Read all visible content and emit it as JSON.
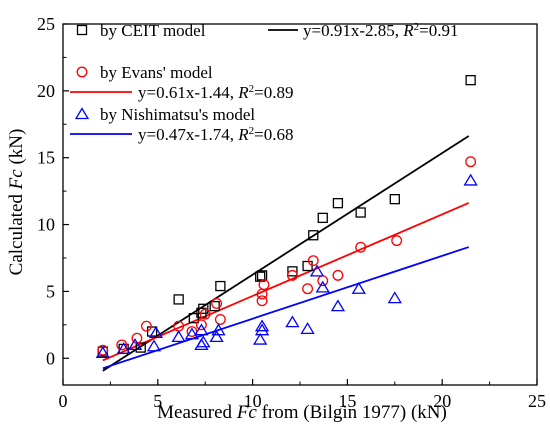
{
  "chart_data": {
    "type": "scatter",
    "xlabel_parts": [
      "Measured ",
      "Fc",
      " from (Bilgin 1977) (kN)"
    ],
    "ylabel_parts": [
      "Calculated ",
      "Fc",
      " (kN)"
    ],
    "xlim": [
      0,
      25
    ],
    "ylim": [
      -2,
      25
    ],
    "xticks": [
      0,
      5,
      10,
      15,
      20,
      25
    ],
    "yticks": [
      0,
      5,
      10,
      15,
      20,
      25
    ],
    "grid": false,
    "legend_position": "top-left",
    "series": [
      {
        "name": "by CEIT model",
        "marker": "square",
        "color": "#000000",
        "fit": {
          "label": "y=0.91x-2.85, ",
          "r2": "=0.91",
          "slope": 0.91,
          "intercept": -2.85,
          "xrange": [
            2.1,
            21.4
          ]
        },
        "points": [
          [
            2.1,
            0.5
          ],
          [
            3.2,
            0.7
          ],
          [
            4.1,
            0.8
          ],
          [
            4.7,
            2.0
          ],
          [
            6.1,
            4.4
          ],
          [
            6.9,
            3.0
          ],
          [
            7.3,
            3.4
          ],
          [
            7.4,
            3.7
          ],
          [
            8.0,
            3.9
          ],
          [
            8.3,
            5.4
          ],
          [
            10.4,
            6.1
          ],
          [
            10.5,
            6.2
          ],
          [
            12.1,
            6.5
          ],
          [
            12.9,
            6.9
          ],
          [
            13.2,
            9.2
          ],
          [
            13.7,
            10.5
          ],
          [
            14.5,
            11.6
          ],
          [
            15.7,
            10.9
          ],
          [
            17.5,
            11.9
          ],
          [
            21.5,
            20.8
          ]
        ]
      },
      {
        "name": "by Evans' model",
        "marker": "circle",
        "color": "#ff0000",
        "fit": {
          "label": "y=0.61x-1.44, ",
          "r2": "=0.89",
          "slope": 0.61,
          "intercept": -1.44,
          "xrange": [
            2.1,
            21.4
          ]
        },
        "points": [
          [
            2.1,
            0.6
          ],
          [
            3.1,
            1.0
          ],
          [
            3.9,
            1.5
          ],
          [
            4.4,
            2.4
          ],
          [
            6.1,
            2.4
          ],
          [
            6.8,
            2.0
          ],
          [
            7.3,
            2.5
          ],
          [
            7.5,
            3.3
          ],
          [
            8.1,
            4.1
          ],
          [
            8.3,
            2.9
          ],
          [
            10.5,
            4.3
          ],
          [
            10.5,
            4.8
          ],
          [
            10.6,
            5.5
          ],
          [
            12.1,
            6.2
          ],
          [
            12.9,
            5.2
          ],
          [
            13.2,
            7.3
          ],
          [
            13.7,
            5.8
          ],
          [
            14.5,
            6.2
          ],
          [
            15.7,
            8.3
          ],
          [
            17.6,
            8.8
          ],
          [
            21.5,
            14.7
          ]
        ]
      },
      {
        "name": "by Nishimatsu's model",
        "marker": "triangle",
        "color": "#0000ff",
        "fit": {
          "label": "y=0.47x-1.74, ",
          "r2": "=0.68",
          "slope": 0.47,
          "intercept": -1.74,
          "xrange": [
            2.1,
            21.4
          ]
        },
        "points": [
          [
            2.1,
            0.4
          ],
          [
            3.2,
            0.7
          ],
          [
            3.8,
            1.0
          ],
          [
            4.8,
            0.9
          ],
          [
            4.9,
            1.9
          ],
          [
            6.1,
            1.6
          ],
          [
            6.8,
            1.8
          ],
          [
            7.3,
            1.0
          ],
          [
            7.4,
            1.2
          ],
          [
            7.3,
            2.1
          ],
          [
            8.1,
            1.6
          ],
          [
            8.2,
            2.1
          ],
          [
            10.4,
            1.4
          ],
          [
            10.5,
            2.1
          ],
          [
            10.5,
            2.4
          ],
          [
            12.1,
            2.7
          ],
          [
            12.9,
            2.2
          ],
          [
            13.4,
            6.5
          ],
          [
            13.7,
            5.3
          ],
          [
            14.5,
            3.9
          ],
          [
            15.6,
            5.2
          ],
          [
            17.5,
            4.5
          ],
          [
            21.5,
            13.3
          ]
        ]
      }
    ]
  }
}
